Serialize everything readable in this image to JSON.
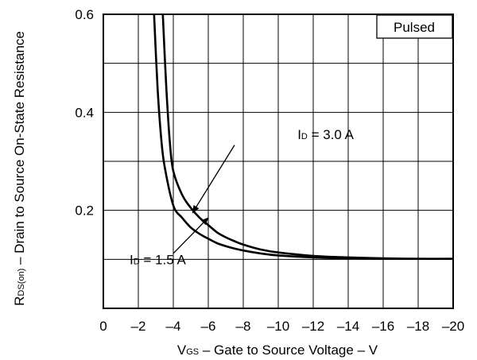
{
  "chart_data": {
    "type": "line",
    "xlabel": {
      "main": "V",
      "sub": "GS",
      "rest": " – Gate to Source Voltage – V"
    },
    "ylabel": {
      "main": "R",
      "sub": "DS(on)",
      "rest": " – Drain to Source On-State Resistance"
    },
    "x_ticks": [
      {
        "value": 0,
        "label": "0"
      },
      {
        "value": 2,
        "label": "–2"
      },
      {
        "value": 4,
        "label": "–4"
      },
      {
        "value": 6,
        "label": "–6"
      },
      {
        "value": 8,
        "label": "–8"
      },
      {
        "value": 10,
        "label": "–10"
      },
      {
        "value": 12,
        "label": "–12"
      },
      {
        "value": 14,
        "label": "–14"
      },
      {
        "value": 16,
        "label": "–16"
      },
      {
        "value": 18,
        "label": "–18"
      },
      {
        "value": 20,
        "label": "–20"
      }
    ],
    "y_ticks": [
      {
        "value": 0.2,
        "label": "0.2"
      },
      {
        "value": 0.4,
        "label": "0.4"
      },
      {
        "value": 0.6,
        "label": "0.6"
      }
    ],
    "xlim": [
      0,
      20
    ],
    "ylim": [
      0,
      0.6
    ],
    "grid": true,
    "legend_box": "Pulsed",
    "series": [
      {
        "name": "ID = 3.0 A",
        "label_main": "I",
        "label_sub": "D",
        "label_rest": " = 3.0 A",
        "x": [
          3.4,
          3.6,
          3.8,
          4.0,
          4.5,
          5.0,
          5.5,
          6.0,
          6.5,
          7.0,
          7.5,
          8.0,
          9.0,
          10.0,
          12.0,
          14.0,
          16.0,
          18.0,
          20.0
        ],
        "y": [
          0.6,
          0.45,
          0.34,
          0.28,
          0.232,
          0.205,
          0.185,
          0.17,
          0.155,
          0.145,
          0.137,
          0.13,
          0.12,
          0.114,
          0.107,
          0.104,
          0.102,
          0.101,
          0.101
        ]
      },
      {
        "name": "ID = 1.5 A",
        "label_main": "I",
        "label_sub": "D",
        "label_rest": " = 1.5 A",
        "x": [
          2.9,
          3.1,
          3.3,
          3.5,
          4.0,
          4.5,
          5.0,
          5.5,
          6.0,
          6.5,
          7.0,
          7.5,
          8.0,
          9.0,
          10.0,
          12.0,
          14.0,
          16.0,
          18.0,
          20.0
        ],
        "y": [
          0.6,
          0.45,
          0.35,
          0.29,
          0.21,
          0.185,
          0.165,
          0.152,
          0.142,
          0.133,
          0.127,
          0.122,
          0.118,
          0.112,
          0.108,
          0.104,
          0.102,
          0.101,
          0.101,
          0.101
        ]
      }
    ],
    "annotations": [
      {
        "series": 0,
        "text_x": 11.1,
        "text_y": 0.355,
        "arrow_from": [
          7.5,
          0.333
        ],
        "arrow_to": [
          5.1,
          0.195
        ]
      },
      {
        "series": 1,
        "text_x": 1.5,
        "text_y": 0.1,
        "arrow_from": [
          4.0,
          0.112
        ],
        "arrow_to": [
          6.0,
          0.185
        ]
      }
    ]
  }
}
